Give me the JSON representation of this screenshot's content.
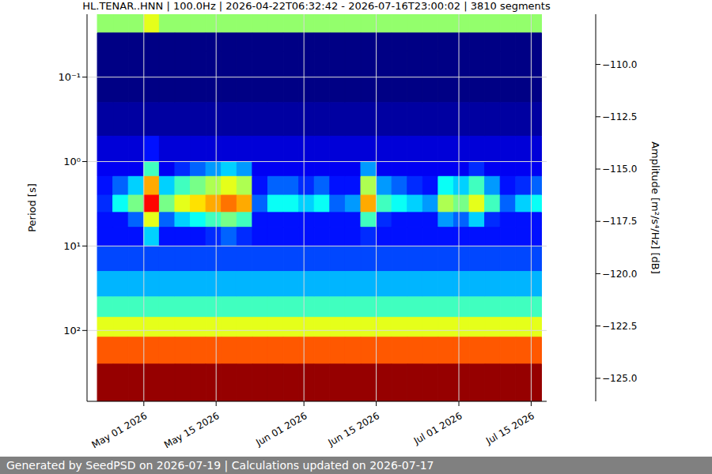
{
  "chart_data": {
    "type": "heatmap",
    "title": "HL.TENAR..HNN | 100.0Hz | 2026-04-22T06:32:42 - 2026-07-16T23:00:02 | 3810 segments",
    "footer": "Generated by SeedPSD on 2026-07-19 | Calculations updated on 2026-07-17",
    "y_label": "Period [s]",
    "log": "y",
    "grid": true,
    "xlim": [
      "2026-04-20",
      "2026-07-18"
    ],
    "xticks": [
      {
        "value": "2026-05-01",
        "label": "May 01 2026"
      },
      {
        "value": "2026-05-15",
        "label": "May 15 2026"
      },
      {
        "value": "2026-06-01",
        "label": "Jun 01 2026"
      },
      {
        "value": "2026-06-15",
        "label": "Jun 15 2026"
      },
      {
        "value": "2026-07-01",
        "label": "Jul 01 2026"
      },
      {
        "value": "2026-07-15",
        "label": "Jul 15 2026"
      }
    ],
    "ylim": [
      0.018,
      690
    ],
    "yticks": [
      {
        "value": 0.1,
        "label": "10⁻¹"
      },
      {
        "value": 1,
        "label": "10⁰"
      },
      {
        "value": 10,
        "label": "10¹"
      },
      {
        "value": 100,
        "label": "10²"
      }
    ],
    "x_edges": [
      "2026-04-22",
      "2026-04-25",
      "2026-04-28",
      "2026-05-01",
      "2026-05-04",
      "2026-05-07",
      "2026-05-10",
      "2026-05-13",
      "2026-05-16",
      "2026-05-19",
      "2026-05-22",
      "2026-05-25",
      "2026-05-28",
      "2026-05-31",
      "2026-06-03",
      "2026-06-06",
      "2026-06-09",
      "2026-06-12",
      "2026-06-15",
      "2026-06-18",
      "2026-06-21",
      "2026-06-24",
      "2026-06-27",
      "2026-06-30",
      "2026-07-03",
      "2026-07-06",
      "2026-07-09",
      "2026-07-12",
      "2026-07-15",
      "2026-07-17"
    ],
    "y_edges": [
      0.018,
      0.03,
      0.05,
      0.1,
      0.2,
      0.5,
      1,
      1.5,
      2.5,
      4,
      6,
      10,
      20,
      40,
      70,
      120,
      250,
      690
    ],
    "cells": [
      [
        -116.5,
        -116.5,
        -116.5,
        -115,
        -116.5,
        -116.5,
        -116.5,
        -116.5,
        -116.5,
        -116.5,
        -116.5,
        -116.5,
        -116.5,
        -116.5,
        -116.5,
        -116.5,
        -116.5,
        -116.5,
        -116.5,
        -116.5,
        -116.5,
        -116.5,
        -116.5,
        -116.5,
        -116.5,
        -116.5,
        -116.5,
        -116.5,
        -116.5
      ],
      [
        -126,
        -126,
        -126,
        -126,
        -126,
        -126,
        -126,
        -126,
        -126,
        -126,
        -126,
        -126,
        -126,
        -126,
        -126,
        -126,
        -126,
        -126,
        -126,
        -126,
        -126,
        -126,
        -126,
        -126,
        -126,
        -126,
        -126,
        -126,
        -126
      ],
      [
        -126,
        -126,
        -126,
        -126,
        -126,
        -126,
        -126,
        -126,
        -126,
        -126,
        -126,
        -126,
        -126,
        -126,
        -126,
        -126,
        -126,
        -126,
        -126,
        -126,
        -126,
        -126,
        -126,
        -126,
        -126,
        -126,
        -126,
        -126,
        -126
      ],
      [
        -126,
        -126,
        -126,
        -126,
        -126,
        -126,
        -126,
        -126,
        -126,
        -126,
        -126,
        -126,
        -126,
        -126,
        -126,
        -126,
        -126,
        -126,
        -126,
        -126,
        -126,
        -126,
        -126,
        -126,
        -126,
        -126,
        -126,
        -126,
        -126
      ],
      [
        -125.5,
        -125.5,
        -125.5,
        -125.5,
        -125.5,
        -125.5,
        -125.5,
        -125.5,
        -125.5,
        -125.5,
        -125.5,
        -125.5,
        -125.5,
        -125.5,
        -125.5,
        -125.5,
        -125.5,
        -125.5,
        -125.5,
        -125.5,
        -125.5,
        -125.5,
        -125.5,
        -125.5,
        -125.5,
        -125.5,
        -125.5,
        -125.5,
        -125.5
      ],
      [
        -124.5,
        -124.5,
        -124.5,
        -123.5,
        -124.5,
        -124.5,
        -124.5,
        -124.5,
        -124.5,
        -124.5,
        -124.5,
        -124.5,
        -124.5,
        -124.5,
        -124.5,
        -124.5,
        -124.5,
        -124.5,
        -124.5,
        -124.5,
        -124.5,
        -124.5,
        -124.5,
        -124.5,
        -124.5,
        -124.5,
        -124.5,
        -124.5,
        -124.5
      ],
      [
        -124,
        -124,
        -124,
        -118,
        -124,
        -123,
        -122,
        -121,
        -120,
        -121,
        -124,
        -124,
        -124,
        -124,
        -124,
        -124,
        -124,
        -121,
        -124,
        -124,
        -124,
        -124,
        -124,
        -124,
        -123,
        -124,
        -124,
        -124,
        -124
      ],
      [
        -123.5,
        -122,
        -120,
        -113,
        -120,
        -118,
        -117,
        -116,
        -115,
        -116,
        -123.5,
        -122,
        -122,
        -123,
        -122,
        -123.5,
        -123.5,
        -116,
        -121,
        -122,
        -123,
        -123.5,
        -119,
        -120,
        -118,
        -121,
        -123.5,
        -123,
        -122
      ],
      [
        -123,
        -119,
        -117,
        -110,
        -117,
        -115,
        -114,
        -113,
        -112,
        -113,
        -122,
        -119,
        -119,
        -120,
        -119,
        -122,
        -121,
        -113,
        -118,
        -119,
        -120,
        -121,
        -116,
        -117,
        -115,
        -118,
        -122,
        -120,
        -119
      ],
      [
        -123.5,
        -123.5,
        -122,
        -115,
        -122,
        -120,
        -119,
        -118,
        -117,
        -118,
        -123.5,
        -123.5,
        -123.5,
        -123.5,
        -123.5,
        -123.5,
        -123.5,
        -118,
        -123,
        -123.5,
        -123.5,
        -123.5,
        -121,
        -122,
        -120,
        -123,
        -123.5,
        -123.5,
        -123.5
      ],
      [
        -123.5,
        -123.5,
        -123.5,
        -120,
        -123.5,
        -123.5,
        -123.5,
        -123,
        -122,
        -123,
        -123.5,
        -123.5,
        -123.5,
        -123.5,
        -123.5,
        -123.5,
        -123.5,
        -123,
        -123.5,
        -123.5,
        -123.5,
        -123.5,
        -123.5,
        -123.5,
        -123.5,
        -123.5,
        -123.5,
        -123.5,
        -123.5
      ],
      [
        -122.5,
        -122.5,
        -122.5,
        -122.5,
        -122.5,
        -122.5,
        -122.5,
        -122.5,
        -122.5,
        -122.5,
        -122.5,
        -122.5,
        -122.5,
        -122.5,
        -122.5,
        -122.5,
        -122.5,
        -122.5,
        -122.5,
        -122.5,
        -122.5,
        -122.5,
        -122.5,
        -122.5,
        -122.5,
        -122.5,
        -122.5,
        -122.5,
        -122.5
      ],
      [
        -120.5,
        -120.5,
        -120.5,
        -120.5,
        -120.5,
        -120.5,
        -120.5,
        -120.5,
        -120.5,
        -120.5,
        -120.5,
        -120.5,
        -120.5,
        -120.5,
        -120.5,
        -120.5,
        -120.5,
        -120.5,
        -120.5,
        -120.5,
        -120.5,
        -120.5,
        -120.5,
        -120.5,
        -120.5,
        -120.5,
        -120.5,
        -120.5,
        -120.5
      ],
      [
        -118,
        -118,
        -118,
        -118,
        -118,
        -118,
        -118,
        -118,
        -118,
        -118,
        -118,
        -118,
        -118,
        -118,
        -118,
        -118,
        -118,
        -118,
        -118,
        -118,
        -118,
        -118,
        -118,
        -118,
        -118,
        -118,
        -118,
        -118,
        -118
      ],
      [
        -115,
        -115,
        -115,
        -115,
        -115,
        -115,
        -115,
        -115,
        -115,
        -115,
        -115,
        -115,
        -115,
        -115,
        -115,
        -115,
        -115,
        -115,
        -115,
        -115,
        -115,
        -115,
        -115,
        -115,
        -115,
        -115,
        -115,
        -115,
        -115
      ],
      [
        -111.5,
        -111.5,
        -111.5,
        -111.5,
        -111.5,
        -111.5,
        -111.5,
        -111.5,
        -111.5,
        -111.5,
        -111.5,
        -111.5,
        -111.5,
        -111.5,
        -111.5,
        -111.5,
        -111.5,
        -111.5,
        -111.5,
        -111.5,
        -111.5,
        -111.5,
        -111.5,
        -111.5,
        -111.5,
        -111.5,
        -111.5,
        -111.5,
        -111.5
      ],
      [
        -108,
        -108,
        -108,
        -108,
        -108,
        -108,
        -108,
        -108,
        -108,
        -108,
        -108,
        -108,
        -108,
        -108,
        -108,
        -108,
        -108,
        -108,
        -108,
        -108,
        -108,
        -108,
        -108,
        -108,
        -108,
        -108,
        -108,
        -108,
        -108
      ]
    ],
    "colorbar": {
      "label": "Amplitude [m²/s⁴/Hz] [dB]",
      "lim": [
        -126.1,
        -107.6
      ],
      "ticks": [
        {
          "value": -110,
          "label": "−110.0"
        },
        {
          "value": -112.5,
          "label": "−112.5"
        },
        {
          "value": -115,
          "label": "−115.0"
        },
        {
          "value": -117.5,
          "label": "−117.5"
        },
        {
          "value": -120,
          "label": "−120.0"
        },
        {
          "value": -122.5,
          "label": "−122.5"
        },
        {
          "value": -125,
          "label": "−125.0"
        }
      ]
    }
  }
}
